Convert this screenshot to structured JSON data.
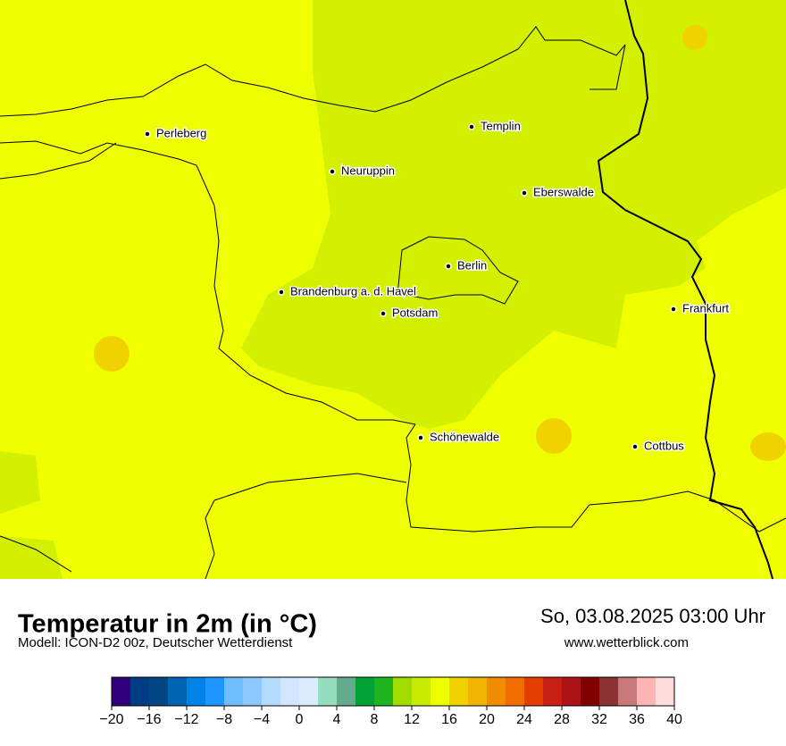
{
  "map": {
    "cities": [
      "Perleberg",
      "Templin",
      "Neuruppin",
      "Eberswalde",
      "Berlin",
      "Brandenburg a. d. Havel",
      "Potsdam",
      "Frankfurt",
      "Schönewalde",
      "Cottbus"
    ]
  },
  "footer": {
    "title": "Temperatur in 2m (in °C)",
    "subtitle": "Modell: ICON-D2 00z, Deutscher Wetterdienst",
    "date": "So, 03.08.2025 03:00 Uhr",
    "website": "www.wetterblick.com"
  },
  "colorbar": {
    "lim": [
      -20,
      40
    ],
    "colors": [
      "#32007d",
      "#003c82",
      "#004682",
      "#0064b4",
      "#0082e6",
      "#1e96ff",
      "#6ebeff",
      "#8cc8ff",
      "#b4dcff",
      "#d2e6ff",
      "#dcecff",
      "#96dcbe",
      "#64aa8c",
      "#00a032",
      "#1eb41e",
      "#a0dc00",
      "#c8eb00",
      "#f0ff00",
      "#f0d200",
      "#f0b400",
      "#f08c00",
      "#f06e00",
      "#e63c00",
      "#c81e14",
      "#aa1414",
      "#820000",
      "#8c3232",
      "#c87878",
      "#ffb4b4",
      "#ffdcdc"
    ],
    "ticks": [
      {
        "value": -20,
        "label": "−20"
      },
      {
        "value": -16,
        "label": "−16"
      },
      {
        "value": -12,
        "label": "−12"
      },
      {
        "value": -8,
        "label": "−8"
      },
      {
        "value": -4,
        "label": "−4"
      },
      0,
      4,
      8,
      12,
      16,
      20,
      24,
      28,
      32,
      36,
      40
    ]
  }
}
